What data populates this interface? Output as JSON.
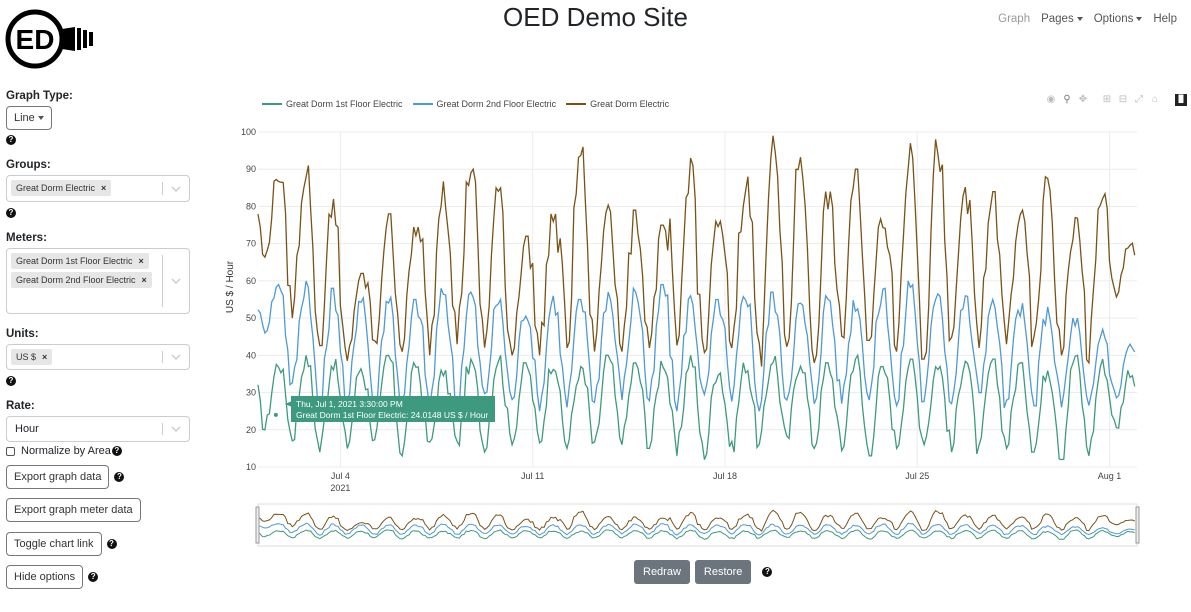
{
  "header": {
    "logo_text": "ED",
    "title": "OED Demo Site",
    "nav": [
      {
        "label": "Graph",
        "active": true,
        "dropdown": false
      },
      {
        "label": "Pages",
        "active": false,
        "dropdown": true
      },
      {
        "label": "Options",
        "active": false,
        "dropdown": true
      },
      {
        "label": "Help",
        "active": false,
        "dropdown": false
      }
    ]
  },
  "sidebar": {
    "graph_type": {
      "label": "Graph Type:",
      "value": "Line"
    },
    "groups": {
      "label": "Groups:",
      "chips": [
        "Great Dorm Electric"
      ]
    },
    "meters": {
      "label": "Meters:",
      "chips": [
        "Great Dorm 1st Floor Electric",
        "Great Dorm 2nd Floor Electric"
      ]
    },
    "units": {
      "label": "Units:",
      "chips": [
        "US $"
      ]
    },
    "rate": {
      "label": "Rate:",
      "value": "Hour"
    },
    "normalize": {
      "label": "Normalize by Area",
      "checked": false
    },
    "buttons": {
      "export_graph": "Export graph data",
      "export_meter": "Export graph meter data",
      "toggle_link": "Toggle chart link",
      "hide_options": "Hide options"
    }
  },
  "chart": {
    "modebar_icons": [
      "camera-icon",
      "zoom-icon",
      "pan-icon",
      "zoom-in-icon",
      "zoom-out-icon",
      "autoscale-icon",
      "reset-axes-icon",
      "plotly-logo-icon"
    ],
    "tooltip": {
      "title": "Thu, Jul 1, 2021 3:30:00 PM",
      "body": "Great Dorm 1st Floor Electric: 24.0148 US $ / Hour",
      "color": "#3d9a7f"
    },
    "buttons": {
      "redraw": "Redraw",
      "restore": "Restore"
    }
  },
  "chart_data": {
    "type": "line",
    "xlabel": "",
    "ylabel": "US $ / Hour",
    "ylim": [
      10,
      100
    ],
    "yticks": [
      10,
      20,
      30,
      40,
      50,
      60,
      70,
      80,
      90,
      100
    ],
    "xticks": [
      "Jul 4",
      "Jul 11",
      "Jul 18",
      "Jul 25",
      "Aug 1"
    ],
    "xtick_sublabel": "2021",
    "x_start": "2021-07-01",
    "x_end": "2021-08-02",
    "grid": true,
    "legend_position": "top-left",
    "has_range_slider": true,
    "series": [
      {
        "name": "Great Dorm 1st Floor Electric",
        "color": "#3d9a7f",
        "daily_max": [
          38,
          40,
          39,
          37,
          40,
          38,
          36,
          39,
          40,
          38,
          39,
          37,
          40,
          38,
          39,
          40,
          37,
          38,
          40,
          39,
          38,
          40,
          37,
          39,
          38,
          40,
          39,
          38,
          37,
          40,
          39,
          36
        ],
        "daily_min": [
          20,
          17,
          14,
          15,
          16,
          13,
          15,
          15,
          14,
          16,
          16,
          15,
          14,
          16,
          15,
          13,
          12,
          14,
          15,
          16,
          15,
          14,
          13,
          15,
          16,
          14,
          13,
          15,
          14,
          12,
          13,
          20
        ]
      },
      {
        "name": "Great Dorm 2nd Floor Electric",
        "color": "#4d9ad6",
        "daily_max": [
          59,
          60,
          58,
          57,
          56,
          55,
          58,
          57,
          55,
          53,
          56,
          55,
          57,
          58,
          59,
          56,
          55,
          58,
          57,
          54,
          56,
          55,
          58,
          60,
          59,
          56,
          55,
          54,
          53,
          50,
          47,
          43
        ],
        "daily_min": [
          46,
          31,
          24,
          25,
          26,
          26,
          26,
          27,
          28,
          27,
          25,
          26,
          27,
          28,
          26,
          25,
          27,
          26,
          25,
          28,
          27,
          27,
          28,
          25,
          26,
          27,
          29,
          25,
          26,
          26,
          25,
          28
        ]
      },
      {
        "name": "Great Dorm Electric",
        "color": "#7a5216",
        "daily_max": [
          89,
          91,
          82,
          62,
          78,
          75,
          88,
          92,
          85,
          72,
          78,
          96,
          82,
          79,
          75,
          93,
          76,
          88,
          99,
          95,
          84,
          90,
          78,
          97,
          98,
          86,
          84,
          79,
          88,
          77,
          86,
          71
        ],
        "daily_min": [
          65,
          50,
          42,
          38,
          40,
          41,
          40,
          43,
          42,
          40,
          40,
          42,
          41,
          41,
          42,
          40,
          40,
          42,
          37,
          40,
          38,
          42,
          44,
          41,
          39,
          41,
          42,
          43,
          40,
          40,
          38,
          55
        ]
      }
    ]
  }
}
